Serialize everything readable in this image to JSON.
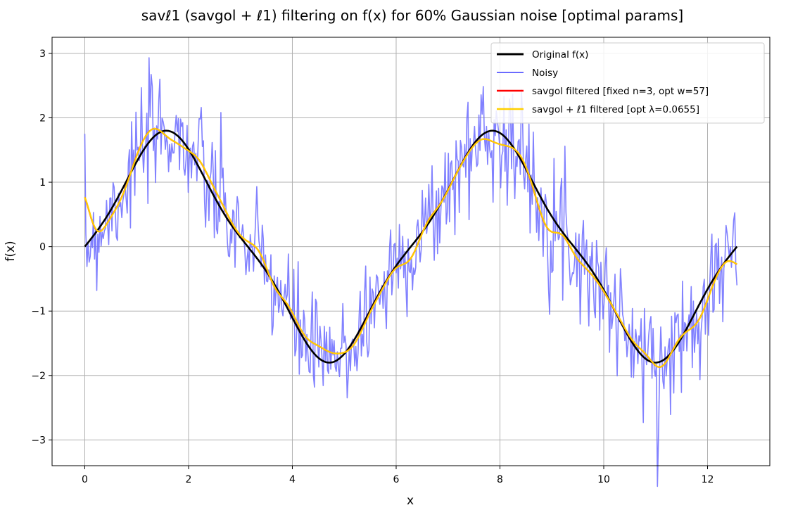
{
  "chart_data": {
    "type": "line",
    "title": "savℓ1 (savgol + ℓ1) filtering on f(x) for 60% Gaussian noise [optimal params]",
    "xlabel": "x",
    "ylabel": "f(x)",
    "xlim": [
      -0.63,
      13.2
    ],
    "ylim": [
      -3.4,
      3.25
    ],
    "xticks": [
      0,
      2,
      4,
      6,
      8,
      10,
      12
    ],
    "yticks": [
      -3,
      -2,
      -1,
      0,
      1,
      2,
      3
    ],
    "grid": true,
    "legend_position": "top-right",
    "series": [
      {
        "name": "Original f(x)",
        "color": "#000000",
        "style": "original"
      },
      {
        "name": "Noisy",
        "color": "#6b6bff",
        "style": "noisy",
        "noise_sigma": 0.45,
        "seed": 7
      },
      {
        "name": "savgol filtered [fixed n=3, opt w=57]",
        "color": "#ff0000",
        "style": "savgol",
        "window": 57,
        "order": 3
      },
      {
        "name": "savgol + ℓ1 filtered [opt λ=0.0655]",
        "color": "#ffd000",
        "style": "savgol-l1",
        "lambda": 0.0655
      }
    ]
  }
}
